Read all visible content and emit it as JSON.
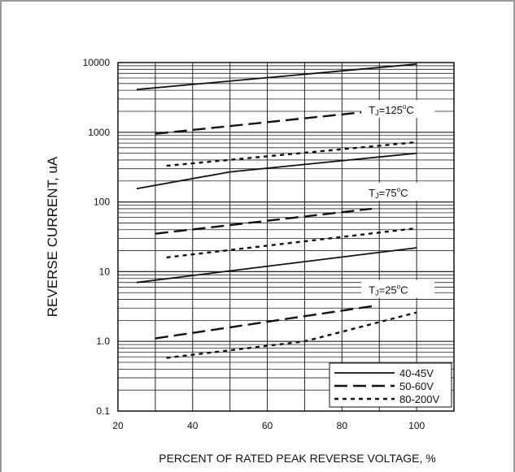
{
  "chart_data": {
    "type": "line",
    "title": "",
    "xlabel": "PERCENT OF RATED PEAK REVERSE VOLTAGE, %",
    "ylabel": "REVERSE CURRENT, uA",
    "y_scale": "log",
    "xlim": [
      20,
      110
    ],
    "ylim": [
      0.1,
      10000
    ],
    "x_ticks": [
      20,
      40,
      60,
      80,
      100
    ],
    "x_tick_labels": [
      "20",
      "40",
      "60",
      "80",
      "100"
    ],
    "y_ticks": [
      0.1,
      1,
      10,
      100,
      1000,
      10000
    ],
    "y_tick_labels": [
      "0.1",
      "1.0",
      "10",
      "100",
      "1000",
      "10000"
    ],
    "grid": true,
    "legend_position": "bottom-right",
    "legend": [
      {
        "label": "40-45V",
        "style": "solid"
      },
      {
        "label": "50-60V",
        "style": "dashed"
      },
      {
        "label": "80-200V",
        "style": "dotted"
      }
    ],
    "annotations": [
      {
        "id": "tj125",
        "prefix": "T",
        "sub": "J",
        "value": "=125",
        "sup": "o",
        "unit": "C",
        "x": 95,
        "y": 2100
      },
      {
        "id": "tj75",
        "prefix": "T",
        "sub": "J",
        "value": "=75",
        "sup": "o",
        "unit": "C",
        "x": 95,
        "y": 137
      },
      {
        "id": "tj25",
        "prefix": "T",
        "sub": "J",
        "value": "=25",
        "sup": "o",
        "unit": "C",
        "x": 95,
        "y": 5.5
      }
    ],
    "series": [
      {
        "legend": "40-45V",
        "style": "solid",
        "temp": "125",
        "x": [
          25,
          100
        ],
        "y": [
          4100,
          9500
        ]
      },
      {
        "legend": "50-60V",
        "style": "dashed",
        "temp": "125",
        "x": [
          30,
          88
        ],
        "y": [
          950,
          2000
        ]
      },
      {
        "legend": "80-200V",
        "style": "dotted",
        "temp": "125",
        "x": [
          33,
          100
        ],
        "y": [
          330,
          720
        ]
      },
      {
        "legend": "40-45V",
        "style": "solid",
        "temp": "75",
        "x": [
          25,
          50,
          100
        ],
        "y": [
          155,
          270,
          500
        ]
      },
      {
        "legend": "50-60V",
        "style": "dashed",
        "temp": "75",
        "x": [
          30,
          88
        ],
        "y": [
          35,
          80
        ]
      },
      {
        "legend": "80-200V",
        "style": "dotted",
        "temp": "75",
        "x": [
          33,
          100
        ],
        "y": [
          16,
          42
        ]
      },
      {
        "legend": "40-45V",
        "style": "solid",
        "temp": "25",
        "x": [
          25,
          100
        ],
        "y": [
          7,
          22
        ]
      },
      {
        "legend": "50-60V",
        "style": "dashed",
        "temp": "25",
        "x": [
          30,
          88
        ],
        "y": [
          1.1,
          3.2
        ]
      },
      {
        "legend": "80-200V",
        "style": "dotted",
        "temp": "25",
        "x": [
          33,
          70,
          100
        ],
        "y": [
          0.58,
          1.0,
          2.6
        ]
      }
    ]
  }
}
